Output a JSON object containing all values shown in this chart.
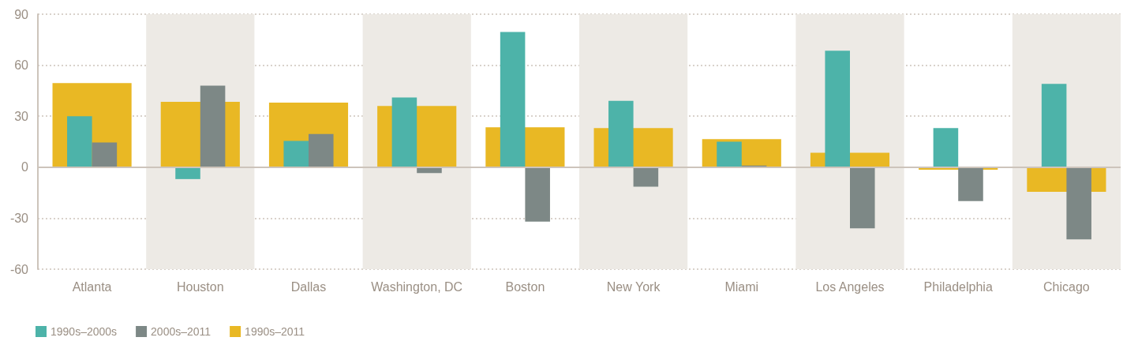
{
  "chart_data": {
    "type": "bar",
    "categories": [
      "Atlanta",
      "Houston",
      "Dallas",
      "Washington, DC",
      "Boston",
      "New York",
      "Miami",
      "Los Angeles",
      "Philadelphia",
      "Chicago"
    ],
    "series": [
      {
        "name": "1990s–2000s",
        "color": "#4db3a9",
        "values": [
          30,
          -7,
          15.5,
          41,
          79.5,
          39,
          15,
          68.5,
          23,
          49
        ]
      },
      {
        "name": "2000s–2011",
        "color": "#7d8886",
        "values": [
          14.5,
          48,
          19.5,
          -3.5,
          -32,
          -11.5,
          1,
          -36,
          -20,
          -42.5
        ]
      },
      {
        "name": "1990s–2011",
        "color": "#e9b824",
        "values": [
          49.5,
          38.5,
          38,
          36,
          23.5,
          23,
          16.5,
          8.5,
          -1.5,
          -14.5
        ]
      }
    ],
    "ylim": [
      -60,
      90
    ],
    "yticks": [
      -60,
      -30,
      0,
      30,
      60,
      90
    ],
    "grid": "y",
    "legend": "bottom left",
    "bands": [
      {
        "axis": "x",
        "from": "Houston",
        "to": "Houston",
        "color": "#edeae5"
      },
      {
        "axis": "x",
        "from": "Washington, DC",
        "to": "Washington, DC",
        "color": "#edeae5"
      },
      {
        "axis": "x",
        "from": "New York",
        "to": "New York",
        "color": "#edeae5"
      },
      {
        "axis": "x",
        "from": "Los Angeles",
        "to": "Los Angeles",
        "color": "#edeae5"
      },
      {
        "axis": "x",
        "from": "Chicago",
        "to": "Chicago",
        "color": "#edeae5"
      }
    ]
  }
}
